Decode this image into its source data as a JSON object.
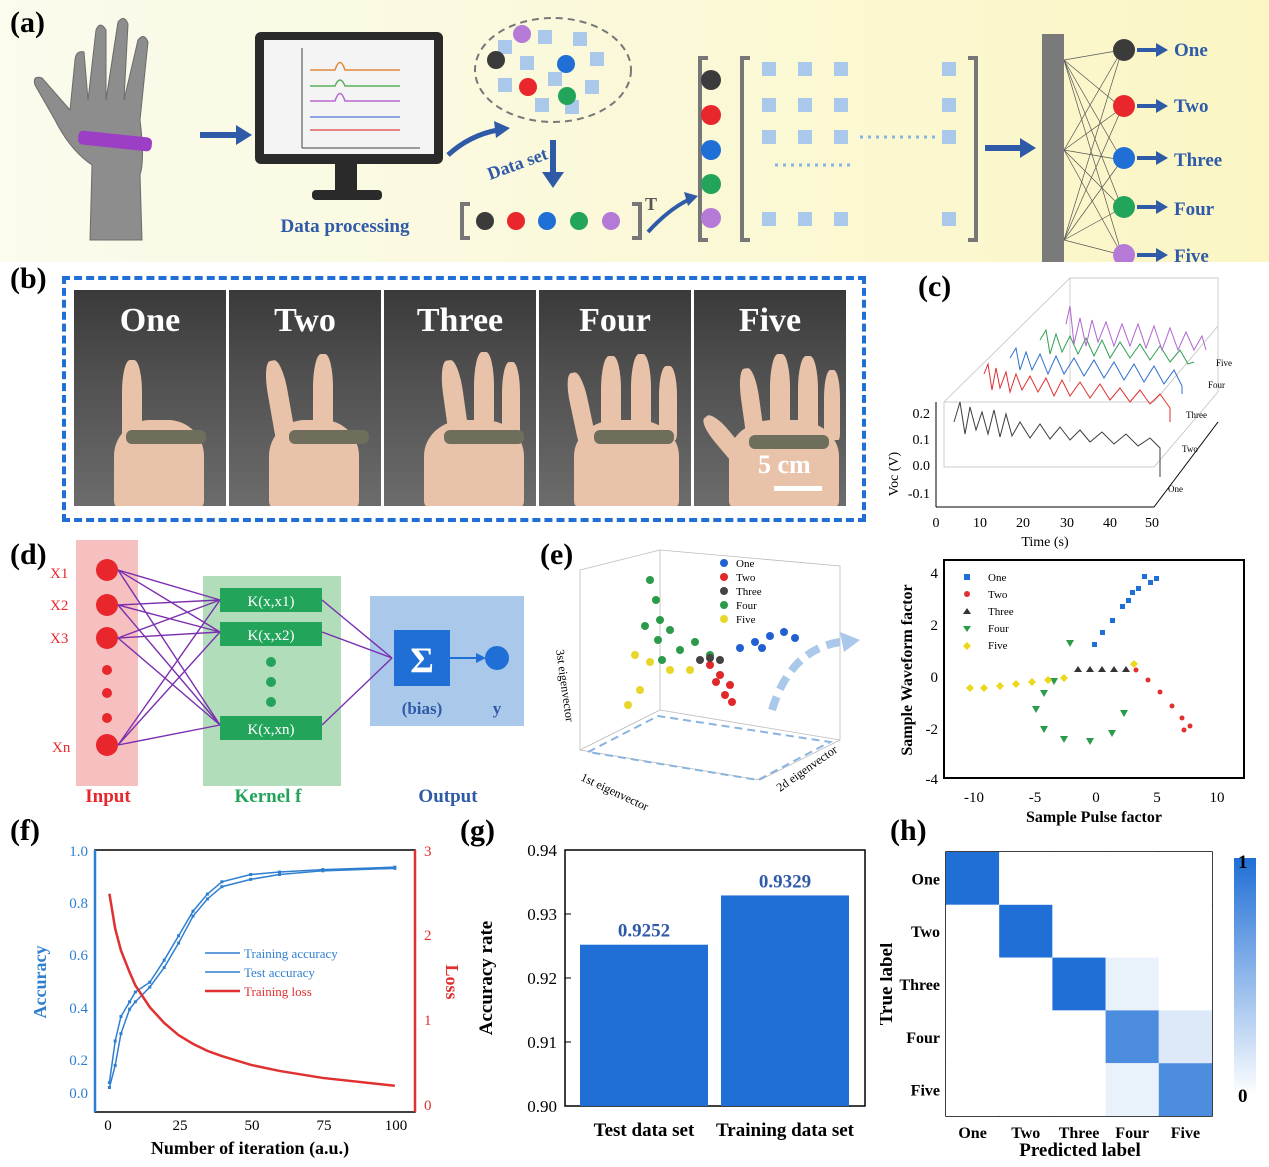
{
  "panel_a": {
    "label": "(a)",
    "data_processing": "Data processing",
    "data_set": "Data set",
    "transpose": "T",
    "outputs": [
      "One",
      "Two",
      "Three",
      "Four",
      "Five"
    ],
    "dot_colors": [
      "#3b3b3b",
      "#e8262c",
      "#1f6fd6",
      "#22a45a",
      "#b47ad6"
    ]
  },
  "panel_b": {
    "label": "(b)",
    "gestures": [
      "One",
      "Two",
      "Three",
      "Four",
      "Five"
    ],
    "scale_bar": "5 cm"
  },
  "panel_c": {
    "label": "(c)",
    "ylabel": "Voc (V)",
    "xlabel": "Time (s)",
    "yticks": [
      "0.2",
      "0.1",
      "0.0",
      "-0.1"
    ],
    "xticks": [
      "0",
      "10",
      "20",
      "30",
      "40",
      "50"
    ],
    "depth_labels": [
      "One",
      "Two",
      "Three",
      "Four",
      "Five"
    ]
  },
  "panel_d": {
    "label": "(d)",
    "inputs": [
      "X1",
      "X2",
      "X3",
      "Xn"
    ],
    "kernels": [
      "K(x,x1)",
      "K(x,x2)",
      "K(x,xn)"
    ],
    "sigma": "Σ",
    "bias": "(bias)",
    "y": "y",
    "input_title": "Input",
    "kernel_title": "Kernel f",
    "output_title": "Output"
  },
  "panel_e": {
    "label": "(e)",
    "legend3d": [
      "One",
      "Two",
      "Three",
      "Four",
      "Five"
    ],
    "axis3d_x": "1st eigenvector",
    "axis3d_y": "2d eigenvector",
    "axis3d_z": "3st eigenvector",
    "scatter": {
      "xlabel": "Sample Pulse factor",
      "ylabel": "Sample Waveform factor",
      "xticks": [
        "-10",
        "-5",
        "0",
        "5",
        "10"
      ],
      "yticks": [
        "4",
        "2",
        "0",
        "-2",
        "-4"
      ],
      "legend": [
        "One",
        "Two",
        "Three",
        "Four",
        "Five"
      ]
    }
  },
  "panel_f": {
    "label": "(f)",
    "xlabel": "Number of iteration (a.u.)",
    "ylabel_left": "Accuracy",
    "ylabel_right": "Loss",
    "xticks": [
      "0",
      "25",
      "50",
      "75",
      "100"
    ],
    "yticks_left": [
      "1.0",
      "0.8",
      "0.6",
      "0.4",
      "0.2",
      "0.0"
    ],
    "yticks_right": [
      "3",
      "2",
      "1",
      "0"
    ],
    "legend": [
      "Training accuracy",
      "Test accuracy",
      "Training loss"
    ]
  },
  "panel_h": {
    "label": "(h)",
    "xlabel": "Predicted label",
    "ylabel": "True label",
    "classes": [
      "One",
      "Two",
      "Three",
      "Four",
      "Five"
    ],
    "colorbar_max": "1",
    "colorbar_min": "0",
    "matrix": [
      [
        1,
        0,
        0,
        0,
        0
      ],
      [
        0,
        1,
        0,
        0,
        0
      ],
      [
        0,
        0,
        1,
        0.1,
        0
      ],
      [
        0,
        0,
        0,
        0.8,
        0.15
      ],
      [
        0,
        0,
        0,
        0.1,
        0.8
      ]
    ]
  },
  "chart_data": [
    {
      "type": "line",
      "panel": "(f)",
      "xlabel": "Number of iteration (a.u.)",
      "ylabel": "Accuracy",
      "y2label": "Loss",
      "xlim": [
        0,
        100
      ],
      "ylim": [
        0,
        1.0
      ],
      "y2lim": [
        0,
        3
      ],
      "x": [
        1,
        3,
        5,
        8,
        10,
        15,
        20,
        25,
        30,
        35,
        40,
        50,
        60,
        75,
        100
      ],
      "series": [
        {
          "name": "Training accuracy",
          "axis": "left",
          "values": [
            0.05,
            0.22,
            0.32,
            0.38,
            0.42,
            0.46,
            0.55,
            0.65,
            0.75,
            0.82,
            0.87,
            0.9,
            0.91,
            0.92,
            0.93
          ]
        },
        {
          "name": "Test accuracy",
          "axis": "left",
          "values": [
            0.03,
            0.12,
            0.25,
            0.35,
            0.38,
            0.44,
            0.52,
            0.62,
            0.73,
            0.8,
            0.85,
            0.88,
            0.9,
            0.915,
            0.925
          ]
        },
        {
          "name": "Training loss",
          "axis": "right",
          "values": [
            2.5,
            2.1,
            1.85,
            1.6,
            1.45,
            1.2,
            1.02,
            0.88,
            0.78,
            0.7,
            0.64,
            0.54,
            0.47,
            0.39,
            0.3
          ]
        }
      ]
    },
    {
      "type": "bar",
      "panel": "(g)",
      "categories": [
        "Test data set",
        "Training data set"
      ],
      "values": [
        0.9252,
        0.9329
      ],
      "data_labels": [
        "0.9252",
        "0.9329"
      ],
      "ylabel": "Accuracy rate",
      "ylim": [
        0.9,
        0.94
      ],
      "yticks": [
        "0.94",
        "0.93",
        "0.92",
        "0.91",
        "0.90"
      ]
    }
  ]
}
